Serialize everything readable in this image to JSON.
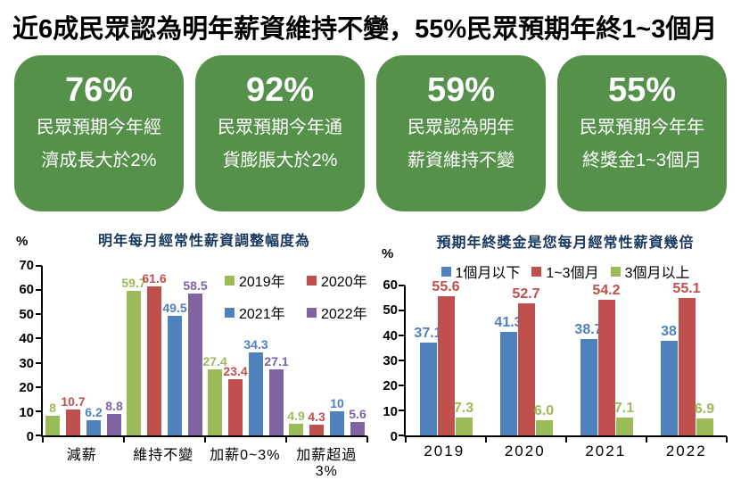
{
  "page_title": "近6成民眾認為明年薪資維持不變，55%民眾預期年終1~3個月",
  "accent_colors": {
    "stat_box_green": "#55914A",
    "chart_title_navy": "#17375D",
    "series_green": "#9BBB59",
    "series_red": "#C0504D",
    "series_blue": "#4F81BD",
    "series_purple": "#8064A2"
  },
  "stat_boxes": [
    {
      "value": "76%",
      "line1": "民眾預期今年經",
      "line2": "濟成長大於2%"
    },
    {
      "value": "92%",
      "line1": "民眾預期今年通",
      "line2": "貨膨脹大於2%"
    },
    {
      "value": "59%",
      "line1": "民眾認為明年",
      "line2": "薪資維持不變"
    },
    {
      "value": "55%",
      "line1": "民眾預期今年年",
      "line2": "終獎金1~3個月"
    }
  ],
  "chart_data": [
    {
      "type": "bar",
      "title": "明年每月經常性薪資調整幅度為",
      "ylabel": "%",
      "xlabel": "",
      "ylim": [
        0,
        70
      ],
      "ytick_step": 10,
      "grid": false,
      "legend_position": "inside-top-right",
      "categories": [
        "減薪",
        "維持不變",
        "加薪0~3%",
        "加薪超過3%"
      ],
      "series": [
        {
          "name": "2019年",
          "color": "#9BBB59",
          "values": [
            8,
            59.7,
            27.4,
            4.9
          ],
          "labels": [
            "8",
            "59.7",
            "27.4",
            "4.9"
          ]
        },
        {
          "name": "2020年",
          "color": "#C0504D",
          "values": [
            10.7,
            61.6,
            23.4,
            4.3
          ],
          "labels": [
            "10.7",
            "61.6",
            "23.4",
            "4.3"
          ]
        },
        {
          "name": "2021年",
          "color": "#4F81BD",
          "values": [
            6.2,
            49.5,
            34.3,
            10
          ],
          "labels": [
            "6.2",
            "49.5",
            "34.3",
            "10"
          ]
        },
        {
          "name": "2022年",
          "color": "#8064A2",
          "values": [
            8.8,
            58.5,
            27.1,
            5.6
          ],
          "labels": [
            "8.8",
            "58.5",
            "27.1",
            "5.6"
          ]
        }
      ]
    },
    {
      "type": "bar",
      "title": "預期年終獎金是您每月經常性薪資幾倍",
      "ylabel": "%",
      "xlabel": "",
      "ylim": [
        0,
        60
      ],
      "ytick_step": 10,
      "grid": false,
      "legend_position": "top-center",
      "categories": [
        "2019",
        "2020",
        "2021",
        "2022"
      ],
      "series": [
        {
          "name": "1個月以下",
          "color": "#4F81BD",
          "values": [
            37.1,
            41.3,
            38.7,
            38
          ],
          "labels": [
            "37.1",
            "41.3",
            "38.7",
            "38"
          ]
        },
        {
          "name": "1~3個月",
          "color": "#C0504D",
          "values": [
            55.6,
            52.7,
            54.2,
            55.1
          ],
          "labels": [
            "55.6",
            "52.7",
            "54.2",
            "55.1"
          ]
        },
        {
          "name": "3個月以上",
          "color": "#9BBB59",
          "values": [
            7.3,
            6.0,
            7.1,
            6.9
          ],
          "labels": [
            "7.3",
            "6.0",
            "7.1",
            "6.9"
          ]
        }
      ]
    }
  ]
}
